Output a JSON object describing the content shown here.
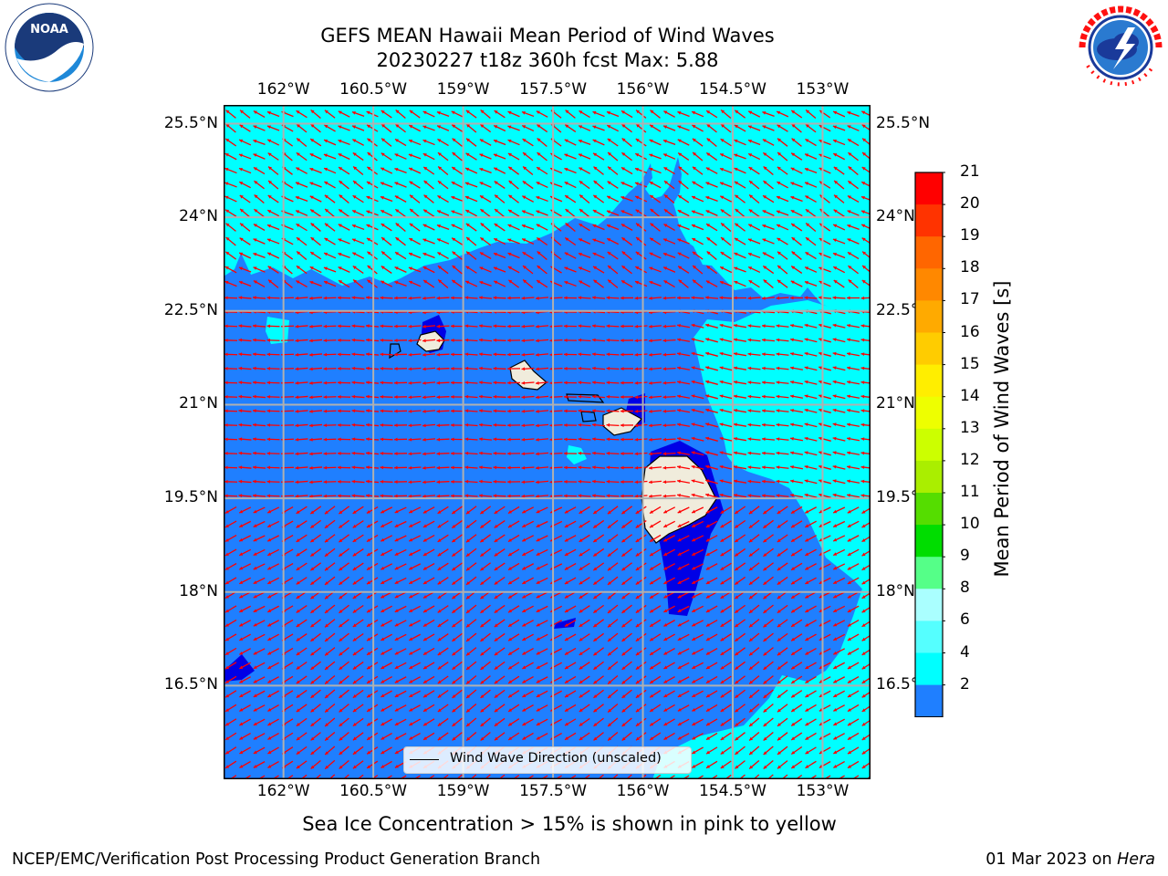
{
  "header": {
    "title_line1": "GEFS MEAN Hawaii Mean Period of Wind Waves",
    "title_line2": "20230227 t18z 360h fcst   Max: 5.88"
  },
  "logos": {
    "left": {
      "icon": "noaa-logo",
      "text": "NOAA",
      "ring_text": "NATIONAL OCEANIC AND ATMOSPHERIC ADMINISTRATION · U.S. DEPARTMENT OF COMMERCE"
    },
    "right": {
      "icon": "nws-logo",
      "ring_text": "NATIONAL WEATHER SERVICE"
    }
  },
  "map": {
    "lon_ticks": [
      "162°W",
      "160.5°W",
      "159°W",
      "157.5°W",
      "156°W",
      "154.5°W",
      "153°W"
    ],
    "lat_ticks": [
      "25.5°N",
      "24°N",
      "22.5°N",
      "21°N",
      "19.5°N",
      "18°N",
      "16.5°N"
    ],
    "lon_values": [
      -162,
      -160.5,
      -159,
      -157.5,
      -156,
      -154.5,
      -153
    ],
    "lat_values": [
      25.5,
      24,
      22.5,
      21,
      19.5,
      18,
      16.5
    ],
    "lon_range": [
      -163,
      -152.2
    ],
    "lat_range": [
      15,
      25.8
    ],
    "legend_label": "Wind Wave Direction (unscaled)",
    "colors": {
      "ocean_2_4": "#1f7fff",
      "ocean_4_6": "#00ffff",
      "ocean_lt_2": "#0000e6",
      "land": "#f0ecdc",
      "arrow": "#ff0000",
      "grid": "#b0b0b0"
    }
  },
  "colorbar": {
    "label": "Mean Period of Wind Waves [s]",
    "ticks": [
      "21",
      "20",
      "19",
      "18",
      "17",
      "16",
      "15",
      "14",
      "13",
      "12",
      "11",
      "10",
      "9",
      "8",
      "6",
      "4",
      "2"
    ],
    "colors": [
      "#ff0000",
      "#ff3300",
      "#ff6600",
      "#ff8800",
      "#ffaa00",
      "#ffcc00",
      "#ffee00",
      "#eeff00",
      "#ccff00",
      "#aaee00",
      "#55dd00",
      "#00dd00",
      "#55ff88",
      "#aaffff",
      "#55ffff",
      "#00ffff",
      "#1f7fff"
    ],
    "extend_color": "#0000e6"
  },
  "caption": "Sea Ice Concentration > 15% is shown in pink to yellow",
  "footer": {
    "left": "NCEP/EMC/Verification Post Processing Product Generation Branch",
    "right_prefix": "01 Mar 2023 on ",
    "right_italic": "Hera"
  }
}
